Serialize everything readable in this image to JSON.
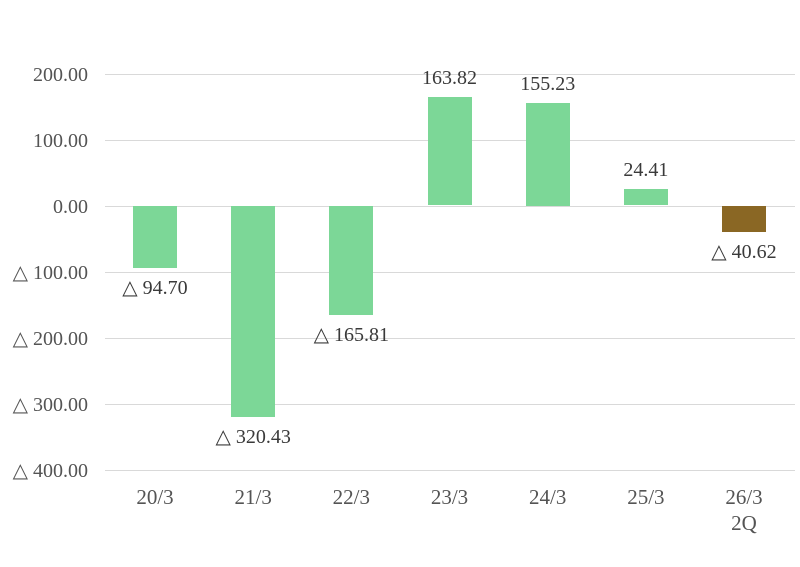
{
  "chart_data": {
    "type": "bar",
    "title": "",
    "xlabel": "",
    "ylabel": "",
    "categories": [
      "20/3",
      "21/3",
      "22/3",
      "23/3",
      "24/3",
      "25/3",
      "26/3"
    ],
    "category_second_lines": [
      "",
      "",
      "",
      "",
      "",
      "",
      "2Q"
    ],
    "series": [
      {
        "name": "values",
        "values": [
          -94.7,
          -320.43,
          -165.81,
          163.82,
          155.23,
          24.41,
          -40.62
        ],
        "data_labels": [
          "△ 94.70",
          "△ 320.43",
          "△ 165.81",
          "163.82",
          "155.23",
          "24.41",
          "△ 40.62"
        ],
        "point_colors": [
          "#7cd797",
          "#7cd797",
          "#7cd797",
          "#7cd797",
          "#7cd797",
          "#7cd797",
          "#8a6724"
        ]
      }
    ],
    "ylim": [
      -400,
      200
    ],
    "y_tick_values": [
      200,
      100,
      0,
      -100,
      -200,
      -300,
      -400
    ],
    "y_tick_labels": [
      "200.00",
      "100.00",
      "0.00",
      "△ 100.00",
      "△ 200.00",
      "△ 300.00",
      "△ 400.00"
    ],
    "grid": true,
    "legend_position": "none",
    "negative_notation": "△"
  },
  "style": {
    "bar_green": "#7cd797",
    "bar_brown": "#8a6724",
    "gridline_color": "#d9d9d9",
    "axis_text_color": "#545454",
    "data_label_color": "#3a3a3a",
    "background": "#ffffff"
  }
}
